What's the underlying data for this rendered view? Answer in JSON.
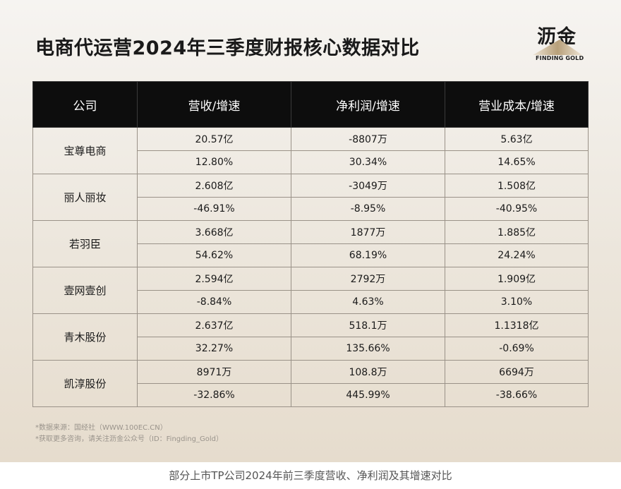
{
  "title": "电商代运营2024年三季度财报核心数据对比",
  "logo": {
    "text": "沥金",
    "subtitle": "FINDING GOLD",
    "accent": "#b8a07a"
  },
  "table": {
    "headers": [
      "公司",
      "营收/增速",
      "净利润/增速",
      "营业成本/增速"
    ],
    "rows": [
      {
        "company": "宝尊电商",
        "values": [
          "20.57亿",
          "-8807万",
          "5.63亿"
        ],
        "growth": [
          "12.80%",
          "30.34%",
          "14.65%"
        ]
      },
      {
        "company": "丽人丽妆",
        "values": [
          "2.608亿",
          "-3049万",
          "1.508亿"
        ],
        "growth": [
          "-46.91%",
          "-8.95%",
          "-40.95%"
        ]
      },
      {
        "company": "若羽臣",
        "values": [
          "3.668亿",
          "1877万",
          "1.885亿"
        ],
        "growth": [
          "54.62%",
          "68.19%",
          "24.24%"
        ]
      },
      {
        "company": "壹网壹创",
        "values": [
          "2.594亿",
          "2792万",
          "1.909亿"
        ],
        "growth": [
          "-8.84%",
          "4.63%",
          "3.10%"
        ]
      },
      {
        "company": "青木股份",
        "values": [
          "2.637亿",
          "518.1万",
          "1.1318亿"
        ],
        "growth": [
          "32.27%",
          "135.66%",
          "-0.69%"
        ]
      },
      {
        "company": "凯淳股份",
        "values": [
          "8971万",
          "108.8万",
          "6694万"
        ],
        "growth": [
          "-32.86%",
          "445.99%",
          "-38.66%"
        ]
      }
    ]
  },
  "notes": [
    "*数据来源：国经社（WWW.100EC.CN）",
    "*获取更多咨询，请关注沥金公众号（ID：Fingding_Gold）"
  ],
  "caption": "部分上市TP公司2024年前三季度营收、净利润及其增速对比"
}
